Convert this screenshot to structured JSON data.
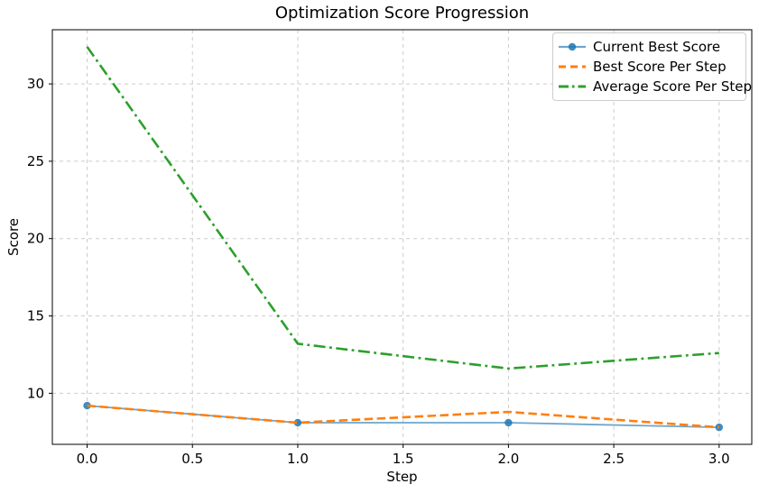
{
  "figure": {
    "title": "Optimization Score Progression"
  },
  "chart_data": {
    "type": "line",
    "title": "Optimization Score Progression",
    "xlabel": "Step",
    "ylabel": "Score",
    "x": [
      0,
      1,
      2,
      3
    ],
    "series": [
      {
        "name": "Current Best Score",
        "values": [
          9.2,
          8.1,
          8.1,
          7.8
        ],
        "color": "#1f77b4",
        "style": "solid",
        "markers": true,
        "line_width": 1.8,
        "opacity": 0.65
      },
      {
        "name": "Best Score Per Step",
        "values": [
          9.2,
          8.1,
          8.8,
          7.8
        ],
        "color": "#ff7f0e",
        "style": "dashed",
        "markers": false,
        "line_width": 2.6,
        "opacity": 1
      },
      {
        "name": "Average Score Per Step",
        "values": [
          32.4,
          13.2,
          11.6,
          12.6
        ],
        "color": "#2ca02c",
        "style": "dashdot",
        "markers": false,
        "line_width": 2.6,
        "opacity": 1
      }
    ],
    "xticks": [
      0.0,
      0.5,
      1.0,
      1.5,
      2.0,
      2.5,
      3.0
    ],
    "xtick_labels": [
      "0.0",
      "0.5",
      "1.0",
      "1.5",
      "2.0",
      "2.5",
      "3.0"
    ],
    "yticks": [
      10,
      15,
      20,
      25,
      30
    ],
    "ytick_labels": [
      "10",
      "15",
      "20",
      "25",
      "30"
    ],
    "xlim": [
      -0.165,
      3.155
    ],
    "ylim": [
      6.7,
      33.5
    ],
    "grid": true,
    "grid_color": "#cccccc",
    "legend_position": "upper right",
    "axis_color": "#000000"
  }
}
